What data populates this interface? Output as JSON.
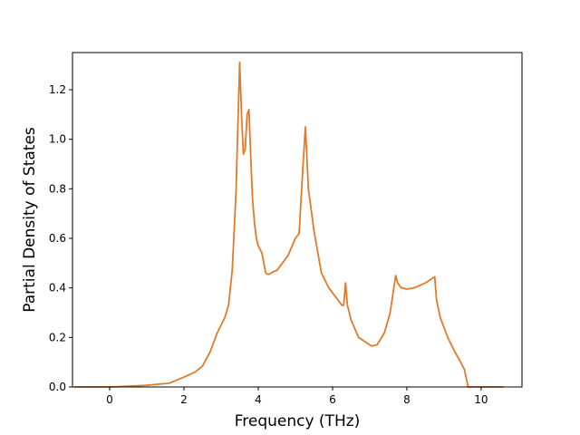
{
  "chart_data": {
    "type": "line",
    "title": "",
    "xlabel": "Frequency (THz)",
    "ylabel": "Partial Density of States",
    "xlim": [
      -1.0,
      11.1
    ],
    "ylim": [
      0.0,
      1.35
    ],
    "xticks": [
      0,
      2,
      4,
      6,
      8,
      10
    ],
    "xtick_labels": [
      "0",
      "2",
      "4",
      "6",
      "8",
      "10"
    ],
    "yticks": [
      0.0,
      0.2,
      0.4,
      0.6,
      0.8,
      1.0,
      1.2
    ],
    "ytick_labels": [
      "0.0",
      "0.2",
      "0.4",
      "0.6",
      "0.8",
      "1.0",
      "1.2"
    ],
    "grid": false,
    "legend": "none",
    "series": [
      {
        "color": "#e07b2a",
        "x": [
          -0.95,
          0.0,
          0.5,
          1.0,
          1.6,
          2.0,
          2.3,
          2.5,
          2.7,
          2.9,
          3.1,
          3.2,
          3.3,
          3.4,
          3.5,
          3.55,
          3.6,
          3.65,
          3.7,
          3.75,
          3.8,
          3.85,
          3.9,
          3.95,
          4.0,
          4.1,
          4.2,
          4.25,
          4.3,
          4.4,
          4.5,
          4.6,
          4.8,
          5.0,
          5.1,
          5.2,
          5.27,
          5.35,
          5.5,
          5.7,
          5.9,
          6.1,
          6.25,
          6.3,
          6.35,
          6.4,
          6.5,
          6.7,
          6.9,
          7.05,
          7.2,
          7.4,
          7.55,
          7.7,
          7.75,
          7.85,
          8.0,
          8.2,
          8.5,
          8.75,
          8.8,
          8.9,
          9.1,
          9.3,
          9.45,
          9.55,
          9.65,
          10.0,
          10.6
        ],
        "y": [
          0.0,
          0.0,
          0.003,
          0.007,
          0.015,
          0.04,
          0.06,
          0.085,
          0.14,
          0.22,
          0.28,
          0.33,
          0.47,
          0.78,
          1.31,
          1.1,
          0.94,
          0.96,
          1.1,
          1.12,
          0.92,
          0.75,
          0.66,
          0.6,
          0.57,
          0.54,
          0.46,
          0.455,
          0.455,
          0.465,
          0.47,
          0.49,
          0.53,
          0.6,
          0.62,
          0.88,
          1.05,
          0.8,
          0.63,
          0.46,
          0.4,
          0.36,
          0.33,
          0.33,
          0.42,
          0.33,
          0.27,
          0.2,
          0.18,
          0.165,
          0.17,
          0.22,
          0.3,
          0.45,
          0.42,
          0.4,
          0.395,
          0.4,
          0.42,
          0.445,
          0.35,
          0.28,
          0.2,
          0.14,
          0.1,
          0.07,
          0.0,
          0.0,
          0.0
        ]
      }
    ]
  }
}
